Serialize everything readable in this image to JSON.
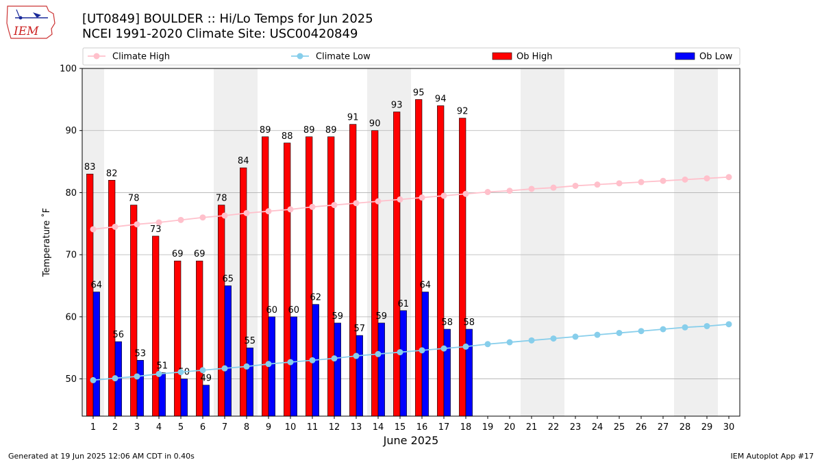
{
  "header": {
    "title_line1": "[UT0849] BOULDER :: Hi/Lo Temps for Jun 2025",
    "title_line2": "NCEI 1991-2020 Climate Site: USC00420849",
    "logo_text": "IEM"
  },
  "footer": {
    "left": "Generated at 19 Jun 2025 12:06 AM CDT in 0.40s",
    "right": "IEM Autoplot App #17"
  },
  "chart_data": {
    "type": "bar",
    "title": "[UT0849] BOULDER :: Hi/Lo Temps for Jun 2025",
    "xlabel": "June 2025",
    "ylabel": "Temperature ˚F",
    "ylim": [
      44,
      100
    ],
    "yticks": [
      50,
      60,
      70,
      80,
      90,
      100
    ],
    "xlim": [
      0.5,
      30.5
    ],
    "days": [
      1,
      2,
      3,
      4,
      5,
      6,
      7,
      8,
      9,
      10,
      11,
      12,
      13,
      14,
      15,
      16,
      17,
      18,
      19,
      20,
      21,
      22,
      23,
      24,
      25,
      26,
      27,
      28,
      29,
      30
    ],
    "weekend_days": [
      1,
      7,
      8,
      14,
      15,
      21,
      22,
      28,
      29
    ],
    "grid": "horizontal",
    "legend_position": "top",
    "series": [
      {
        "name": "Climate High",
        "kind": "line",
        "color": "#ffc0cb",
        "values": [
          74.1,
          74.5,
          74.9,
          75.2,
          75.6,
          76.0,
          76.3,
          76.7,
          77.0,
          77.3,
          77.7,
          78.0,
          78.3,
          78.6,
          78.9,
          79.2,
          79.5,
          79.8,
          80.1,
          80.3,
          80.6,
          80.8,
          81.1,
          81.3,
          81.5,
          81.7,
          81.9,
          82.1,
          82.3,
          82.5
        ]
      },
      {
        "name": "Climate Low",
        "kind": "line",
        "color": "#87ceeb",
        "values": [
          49.8,
          50.1,
          50.4,
          50.8,
          51.1,
          51.4,
          51.7,
          52.0,
          52.4,
          52.7,
          53.0,
          53.3,
          53.7,
          54.0,
          54.3,
          54.6,
          54.9,
          55.2,
          55.6,
          55.9,
          56.2,
          56.5,
          56.8,
          57.1,
          57.4,
          57.7,
          58.0,
          58.3,
          58.5,
          58.8
        ]
      },
      {
        "name": "Ob High",
        "kind": "bar",
        "color": "#ff0000",
        "values": [
          83,
          82,
          78,
          73,
          69,
          69,
          78,
          84,
          89,
          88,
          89,
          89,
          91,
          90,
          93,
          95,
          94,
          92
        ]
      },
      {
        "name": "Ob Low",
        "kind": "bar",
        "color": "#0000ff",
        "values": [
          64,
          56,
          53,
          51,
          50,
          49,
          65,
          55,
          60,
          60,
          62,
          59,
          57,
          59,
          61,
          64,
          58,
          58
        ]
      }
    ]
  }
}
